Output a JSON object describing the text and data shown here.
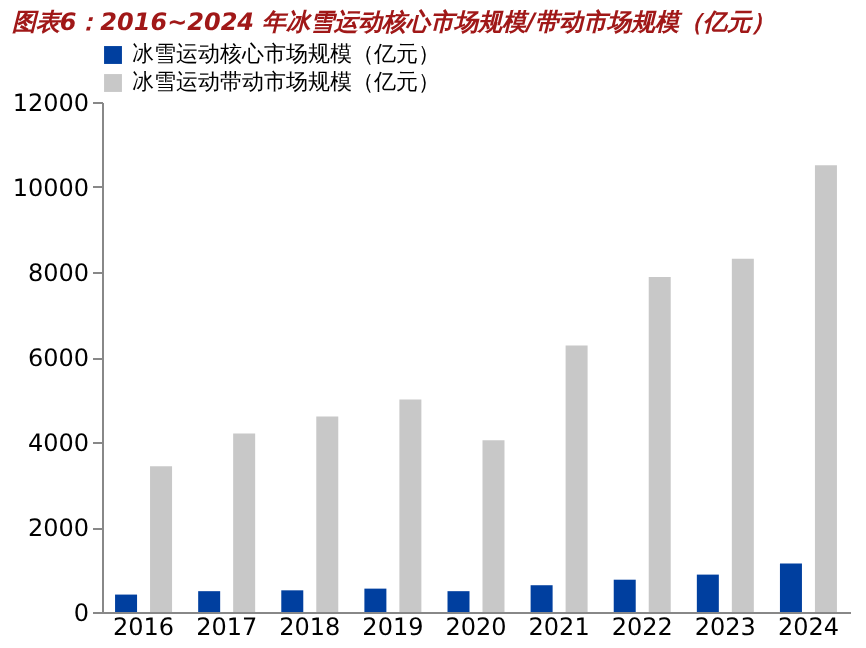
{
  "chart_data": {
    "type": "bar",
    "title": "图表6：2016~2024 年冰雪运动核心市场规模/带动市场规模（亿元）",
    "categories": [
      "2016",
      "2017",
      "2018",
      "2019",
      "2020",
      "2021",
      "2022",
      "2023",
      "2024"
    ],
    "series": [
      {
        "name": "冰雪运动核心市场规模（亿元）",
        "color": "#003f9f",
        "values": [
          410,
          490,
          510,
          550,
          490,
          630,
          760,
          880,
          1140
        ]
      },
      {
        "name": "冰雪运动带动市场规模（亿元）",
        "color": "#c8c8c8",
        "values": [
          3430,
          4200,
          4600,
          5000,
          4040,
          6270,
          7880,
          8310,
          10510
        ]
      }
    ],
    "ylim": [
      0,
      12000
    ],
    "yticks": [
      0,
      2000,
      4000,
      6000,
      8000,
      10000,
      12000
    ],
    "grid": false,
    "legend": "top"
  }
}
